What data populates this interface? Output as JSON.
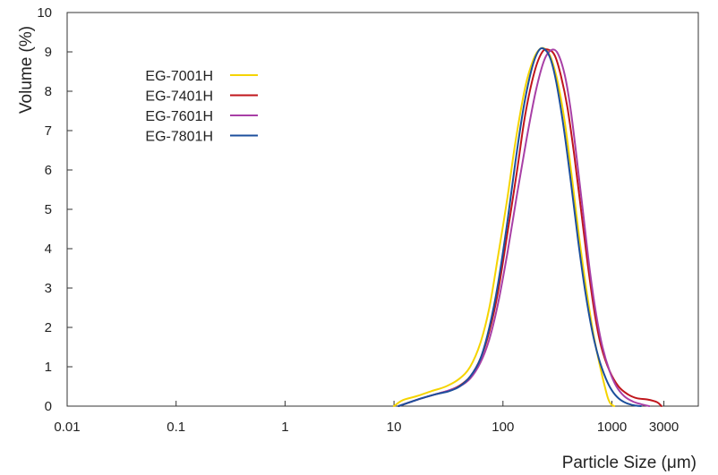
{
  "chart_data": {
    "type": "line",
    "xlabel": "Particle Size (μm)",
    "ylabel": "Volume (%)",
    "xscale": "log",
    "xlim": [
      0.01,
      3000
    ],
    "ylim": [
      0,
      10
    ],
    "x_ticks": [
      0.01,
      0.1,
      1,
      10,
      100,
      1000,
      3000
    ],
    "x_tick_labels": [
      "0.01",
      "0.1",
      "1",
      "10",
      "100",
      "1000",
      "3000"
    ],
    "y_ticks": [
      0,
      1,
      2,
      3,
      4,
      5,
      6,
      7,
      8,
      9,
      10
    ],
    "y_tick_labels": [
      "0",
      "1",
      "2",
      "3",
      "4",
      "5",
      "6",
      "7",
      "8",
      "9",
      "10"
    ],
    "grid": false,
    "legend_position": "top-left",
    "series": [
      {
        "name": "EG-7001H",
        "color": "#f5d400",
        "x": [
          10,
          12,
          16,
          22,
          30,
          40,
          50,
          62,
          75,
          90,
          110,
          130,
          160,
          190,
          220,
          250,
          280,
          320,
          370,
          430,
          500,
          580,
          680,
          780,
          860,
          920,
          980,
          1050
        ],
        "y": [
          0,
          0.15,
          0.25,
          0.38,
          0.5,
          0.7,
          1.0,
          1.6,
          2.5,
          3.8,
          5.3,
          6.7,
          8.1,
          8.8,
          9.08,
          9.05,
          8.8,
          8.2,
          7.2,
          5.8,
          4.3,
          3.0,
          1.8,
          1.0,
          0.5,
          0.2,
          0.05,
          0
        ]
      },
      {
        "name": "EG-7401H",
        "color": "#c0151b",
        "x": [
          11,
          14,
          18,
          24,
          32,
          40,
          50,
          62,
          75,
          90,
          110,
          135,
          160,
          195,
          230,
          265,
          300,
          340,
          390,
          450,
          520,
          600,
          700,
          800,
          950,
          1150,
          1400,
          1700,
          2100,
          2600,
          2850
        ],
        "y": [
          0,
          0.1,
          0.2,
          0.3,
          0.4,
          0.52,
          0.75,
          1.2,
          1.9,
          2.9,
          4.4,
          6.0,
          7.4,
          8.5,
          9.0,
          9.05,
          8.9,
          8.4,
          7.6,
          6.4,
          5.0,
          3.6,
          2.3,
          1.5,
          0.9,
          0.5,
          0.3,
          0.2,
          0.17,
          0.1,
          0
        ]
      },
      {
        "name": "EG-7601H",
        "color": "#a83fa6",
        "x": [
          11,
          14,
          18,
          24,
          32,
          40,
          50,
          62,
          75,
          90,
          110,
          135,
          165,
          200,
          240,
          280,
          320,
          370,
          420,
          480,
          550,
          630,
          720,
          820,
          950,
          1100,
          1300,
          1550,
          1850,
          2200
        ],
        "y": [
          0,
          0.1,
          0.2,
          0.3,
          0.4,
          0.5,
          0.7,
          1.1,
          1.7,
          2.6,
          3.9,
          5.4,
          6.8,
          8.0,
          8.8,
          9.05,
          8.95,
          8.4,
          7.5,
          6.2,
          4.8,
          3.4,
          2.3,
          1.5,
          0.9,
          0.5,
          0.25,
          0.12,
          0.05,
          0
        ]
      },
      {
        "name": "EG-7801H",
        "color": "#1c4f9c",
        "x": [
          11,
          14,
          18,
          24,
          32,
          40,
          50,
          62,
          75,
          90,
          110,
          130,
          155,
          185,
          215,
          245,
          275,
          310,
          360,
          420,
          490,
          570,
          660,
          760,
          880,
          1000,
          1150,
          1350,
          1600,
          1850
        ],
        "y": [
          0,
          0.1,
          0.2,
          0.3,
          0.38,
          0.5,
          0.75,
          1.2,
          2.0,
          3.1,
          4.7,
          6.2,
          7.6,
          8.6,
          9.05,
          9.05,
          8.8,
          8.2,
          7.1,
          5.7,
          4.2,
          2.9,
          1.9,
          1.2,
          0.7,
          0.4,
          0.2,
          0.08,
          0.02,
          0
        ]
      }
    ]
  }
}
